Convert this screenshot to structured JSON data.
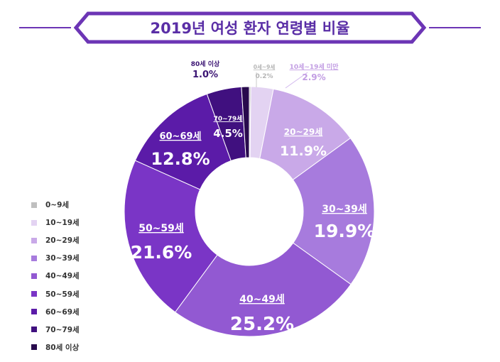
{
  "colors": {
    "accent": "#6c35b5",
    "title_text": "#5a2ea6",
    "segment_outline": "#ffffff"
  },
  "chart_data": {
    "type": "pie",
    "title": "2019년 여성 환자 연령별 비율",
    "unit": "%",
    "legend_position": "left",
    "categories": [
      "0~9세",
      "10~19세",
      "20~29세",
      "30~39세",
      "40~49세",
      "50~59세",
      "60~69세",
      "70~79세",
      "80세 이상"
    ],
    "slice_labels": [
      "0세~9세",
      "10세~19세 미만",
      "20~29세",
      "30~39세",
      "40~49세",
      "50~59세",
      "60~69세",
      "70~79세",
      "80세 이상"
    ],
    "values": [
      0.2,
      2.9,
      11.9,
      19.9,
      25.2,
      21.6,
      12.8,
      4.5,
      1.0
    ],
    "value_labels": [
      "0.2%",
      "2.9%",
      "11.9%",
      "19.9%",
      "25.2%",
      "21.6%",
      "12.8%",
      "4.5%",
      "1.0%"
    ],
    "colors": [
      "#bfbfbf",
      "#e3d3f2",
      "#c9a9e8",
      "#a77bdd",
      "#9259d2",
      "#7a35c6",
      "#5b1ba8",
      "#40107f",
      "#280a4d"
    ]
  }
}
